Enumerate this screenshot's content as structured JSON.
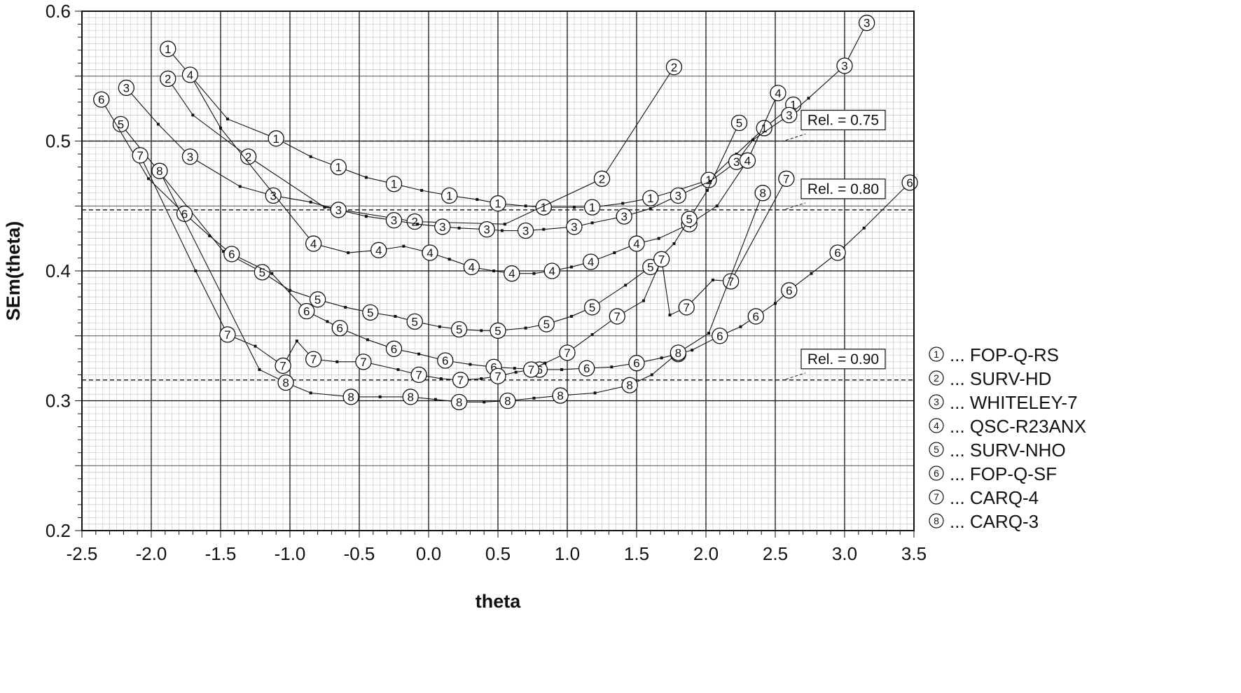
{
  "chart_data": {
    "type": "line",
    "xlabel": "theta",
    "ylabel": "SEm(theta)",
    "xlim": [
      -2.5,
      3.5
    ],
    "ylim": [
      0.2,
      0.6
    ],
    "xticks": [
      "-2.5",
      "-2.0",
      "-1.5",
      "-1.0",
      "-0.5",
      "0.0",
      "0.5",
      "1.0",
      "1.5",
      "2.0",
      "2.5",
      "3.0",
      "3.5"
    ],
    "yticks": [
      "0.2",
      "0.3",
      "0.4",
      "0.5",
      "0.6"
    ],
    "grid": true,
    "legend_position": "right",
    "reference_lines": [
      {
        "label": "Rel. = 0.75",
        "y": 0.5
      },
      {
        "label": "Rel. = 0.80",
        "y": 0.447
      },
      {
        "label": "Rel. = 0.90",
        "y": 0.316
      }
    ],
    "series": [
      {
        "marker": "1",
        "name": "... FOP-Q-RS",
        "x": [
          -1.88,
          -1.45,
          -1.1,
          -0.85,
          -0.65,
          -0.45,
          -0.25,
          -0.05,
          0.15,
          0.35,
          0.5,
          0.7,
          0.83,
          1.05,
          1.18,
          1.4,
          1.6,
          1.82,
          2.02,
          2.22,
          2.42,
          2.63
        ],
        "y": [
          0.571,
          0.517,
          0.502,
          0.488,
          0.48,
          0.472,
          0.467,
          0.462,
          0.458,
          0.455,
          0.452,
          0.45,
          0.449,
          0.449,
          0.449,
          0.452,
          0.456,
          0.463,
          0.47,
          0.49,
          0.51,
          0.528
        ]
      },
      {
        "marker": "2",
        "name": "... SURV-HD",
        "x": [
          -1.88,
          -1.7,
          -1.3,
          -0.75,
          -0.1,
          0.55,
          1.25,
          1.77
        ],
        "y": [
          0.548,
          0.52,
          0.488,
          0.449,
          0.438,
          0.436,
          0.471,
          0.557
        ]
      },
      {
        "marker": "3",
        "name": "... WHITELEY-7",
        "x": [
          -2.18,
          -1.95,
          -1.72,
          -1.36,
          -1.12,
          -0.85,
          -0.65,
          -0.45,
          -0.25,
          -0.08,
          0.1,
          0.22,
          0.42,
          0.53,
          0.7,
          0.83,
          1.05,
          1.18,
          1.41,
          1.6,
          1.8,
          2.03,
          2.22,
          2.34,
          2.6,
          2.74,
          3.0,
          3.16
        ],
        "y": [
          0.541,
          0.513,
          0.488,
          0.465,
          0.458,
          0.453,
          0.447,
          0.442,
          0.439,
          0.436,
          0.434,
          0.433,
          0.432,
          0.431,
          0.431,
          0.432,
          0.434,
          0.437,
          0.442,
          0.448,
          0.458,
          0.469,
          0.484,
          0.501,
          0.52,
          0.533,
          0.558,
          0.591
        ]
      },
      {
        "marker": "4",
        "name": "... QSC-R23ANX",
        "x": [
          -1.72,
          -1.5,
          -0.83,
          -0.58,
          -0.36,
          -0.18,
          0.01,
          0.15,
          0.31,
          0.47,
          0.6,
          0.76,
          0.89,
          1.03,
          1.17,
          1.34,
          1.5,
          1.66,
          1.88,
          2.08,
          2.3,
          2.52
        ],
        "y": [
          0.551,
          0.51,
          0.421,
          0.414,
          0.416,
          0.419,
          0.414,
          0.409,
          0.403,
          0.4,
          0.398,
          0.398,
          0.4,
          0.403,
          0.407,
          0.414,
          0.421,
          0.425,
          0.436,
          0.45,
          0.485,
          0.537
        ]
      },
      {
        "marker": "5",
        "name": "... SURV-NHO",
        "x": [
          -2.22,
          -1.48,
          -1.2,
          -1.0,
          -0.8,
          -0.6,
          -0.42,
          -0.24,
          -0.1,
          0.08,
          0.22,
          0.38,
          0.5,
          0.7,
          0.85,
          1.03,
          1.18,
          1.42,
          1.6,
          1.77,
          1.88,
          2.01,
          2.24
        ],
        "y": [
          0.513,
          0.415,
          0.399,
          0.385,
          0.378,
          0.372,
          0.368,
          0.365,
          0.361,
          0.357,
          0.355,
          0.354,
          0.354,
          0.356,
          0.359,
          0.365,
          0.372,
          0.389,
          0.403,
          0.421,
          0.44,
          0.462,
          0.514
        ]
      },
      {
        "marker": "6",
        "name": "... FOP-Q-SF",
        "x": [
          -2.36,
          -2.02,
          -1.76,
          -1.58,
          -1.42,
          -1.13,
          -0.88,
          -0.73,
          -0.64,
          -0.44,
          -0.25,
          -0.07,
          0.12,
          0.3,
          0.47,
          0.62,
          0.8,
          0.96,
          1.14,
          1.32,
          1.5,
          1.68,
          1.8,
          1.9,
          2.1,
          2.25,
          2.36,
          2.5,
          2.6,
          2.76,
          2.95,
          3.14,
          3.47
        ],
        "y": [
          0.532,
          0.471,
          0.444,
          0.427,
          0.413,
          0.398,
          0.369,
          0.361,
          0.356,
          0.347,
          0.34,
          0.336,
          0.331,
          0.328,
          0.326,
          0.325,
          0.324,
          0.324,
          0.325,
          0.326,
          0.329,
          0.333,
          0.336,
          0.339,
          0.35,
          0.357,
          0.365,
          0.375,
          0.385,
          0.398,
          0.414,
          0.433,
          0.468
        ]
      },
      {
        "marker": "7",
        "name": "... CARQ-4",
        "x": [
          -2.08,
          -1.68,
          -1.45,
          -1.25,
          -1.05,
          -0.95,
          -0.83,
          -0.66,
          -0.47,
          -0.22,
          -0.07,
          0.09,
          0.23,
          0.38,
          0.5,
          0.63,
          0.74,
          0.84,
          1.0,
          1.18,
          1.36,
          1.55,
          1.68,
          1.74,
          1.86,
          2.05,
          2.18,
          2.58
        ],
        "y": [
          0.489,
          0.4,
          0.351,
          0.342,
          0.327,
          0.346,
          0.332,
          0.33,
          0.33,
          0.324,
          0.32,
          0.317,
          0.316,
          0.317,
          0.319,
          0.322,
          0.324,
          0.329,
          0.337,
          0.351,
          0.365,
          0.377,
          0.409,
          0.366,
          0.372,
          0.393,
          0.392,
          0.471
        ]
      },
      {
        "marker": "8",
        "name": "... CARQ-3",
        "x": [
          -1.94,
          -1.22,
          -1.03,
          -0.85,
          -0.56,
          -0.35,
          -0.13,
          0.05,
          0.22,
          0.4,
          0.57,
          0.76,
          0.95,
          1.2,
          1.45,
          1.61,
          1.8,
          2.02,
          2.41
        ],
        "y": [
          0.477,
          0.324,
          0.314,
          0.306,
          0.303,
          0.303,
          0.303,
          0.301,
          0.299,
          0.299,
          0.3,
          0.302,
          0.304,
          0.306,
          0.312,
          0.32,
          0.337,
          0.352,
          0.46
        ]
      }
    ]
  }
}
